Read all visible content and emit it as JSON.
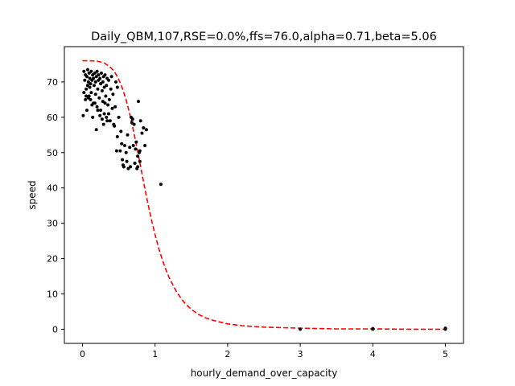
{
  "chart_data": {
    "type": "scatter",
    "title": "Daily_QBM,107,RSE=0.0%,ffs=76.0,alpha=0.71,beta=5.06",
    "xlabel": "hourly_demand_over_capacity",
    "ylabel": "speed",
    "xlim": [
      -0.25,
      5.25
    ],
    "ylim": [
      -4,
      80
    ],
    "xticks": [
      0,
      1,
      2,
      3,
      4,
      5
    ],
    "yticks": [
      0,
      10,
      20,
      30,
      40,
      50,
      60,
      70
    ],
    "grid": false,
    "colors": {
      "points": "#000000",
      "curve": "#ff0000",
      "axes": "#000000"
    },
    "fit_curve": {
      "style": "dashed",
      "ffs": 76.0,
      "alpha": 0.71,
      "beta": 5.06,
      "x": [
        0,
        0.1,
        0.2,
        0.3,
        0.4,
        0.45,
        0.5,
        0.55,
        0.6,
        0.65,
        0.7,
        0.75,
        0.8,
        0.85,
        0.9,
        0.95,
        1.0,
        1.05,
        1.1,
        1.15,
        1.2,
        1.3,
        1.4,
        1.5,
        1.6,
        1.7,
        1.8,
        2.0,
        2.2,
        2.5,
        3.0,
        3.5,
        4.0,
        4.5,
        5.0
      ],
      "y": [
        76.0,
        76.0,
        75.9,
        75.4,
        73.9,
        72.6,
        70.7,
        68.2,
        65.0,
        61.0,
        56.4,
        51.4,
        46.1,
        40.8,
        35.7,
        31.0,
        26.8,
        23.0,
        19.7,
        16.8,
        14.3,
        10.4,
        7.6,
        5.6,
        4.2,
        3.2,
        2.5,
        1.5,
        1.0,
        0.6,
        0.3,
        0.1,
        0.1,
        0.0,
        0.0
      ]
    },
    "points": [
      [
        0.02,
        73.0
      ],
      [
        0.03,
        70.5
      ],
      [
        0.04,
        72.0
      ],
      [
        0.05,
        68.0
      ],
      [
        0.05,
        66.0
      ],
      [
        0.06,
        71.5
      ],
      [
        0.07,
        69.0
      ],
      [
        0.07,
        73.5
      ],
      [
        0.08,
        70.0
      ],
      [
        0.08,
        65.5
      ],
      [
        0.09,
        72.5
      ],
      [
        0.1,
        71.0
      ],
      [
        0.1,
        68.5
      ],
      [
        0.11,
        69.5
      ],
      [
        0.12,
        73.0
      ],
      [
        0.12,
        67.0
      ],
      [
        0.13,
        70.5
      ],
      [
        0.14,
        72.0
      ],
      [
        0.15,
        64.0
      ],
      [
        0.15,
        71.0
      ],
      [
        0.16,
        69.0
      ],
      [
        0.17,
        72.5
      ],
      [
        0.18,
        70.0
      ],
      [
        0.18,
        66.5
      ],
      [
        0.19,
        71.5
      ],
      [
        0.2,
        73.0
      ],
      [
        0.2,
        63.0
      ],
      [
        0.21,
        68.0
      ],
      [
        0.22,
        70.5
      ],
      [
        0.22,
        72.0
      ],
      [
        0.23,
        65.5
      ],
      [
        0.24,
        71.0
      ],
      [
        0.25,
        69.5
      ],
      [
        0.25,
        62.0
      ],
      [
        0.26,
        72.5
      ],
      [
        0.27,
        67.5
      ],
      [
        0.28,
        70.0
      ],
      [
        0.28,
        64.5
      ],
      [
        0.29,
        71.5
      ],
      [
        0.3,
        61.0
      ],
      [
        0.3,
        68.5
      ],
      [
        0.31,
        72.0
      ],
      [
        0.32,
        66.0
      ],
      [
        0.33,
        69.0
      ],
      [
        0.33,
        60.0
      ],
      [
        0.34,
        71.0
      ],
      [
        0.35,
        63.5
      ],
      [
        0.36,
        70.5
      ],
      [
        0.37,
        65.0
      ],
      [
        0.38,
        59.0
      ],
      [
        0.39,
        68.0
      ],
      [
        0.4,
        71.5
      ],
      [
        0.41,
        62.5
      ],
      [
        0.42,
        66.5
      ],
      [
        0.44,
        57.5
      ],
      [
        0.45,
        63.0
      ],
      [
        0.46,
        70.0
      ],
      [
        0.48,
        54.5
      ],
      [
        0.48,
        68.5
      ],
      [
        0.5,
        60.0
      ],
      [
        0.52,
        50.5
      ],
      [
        0.53,
        56.0
      ],
      [
        0.55,
        48.0
      ],
      [
        0.57,
        46.0
      ],
      [
        0.58,
        52.0
      ],
      [
        0.6,
        50.0
      ],
      [
        0.61,
        47.5
      ],
      [
        0.63,
        45.5
      ],
      [
        0.65,
        51.5
      ],
      [
        0.66,
        46.0
      ],
      [
        0.68,
        58.5
      ],
      [
        0.69,
        59.5
      ],
      [
        0.7,
        52.0
      ],
      [
        0.71,
        58.0
      ],
      [
        0.72,
        47.0
      ],
      [
        0.73,
        51.0
      ],
      [
        0.74,
        53.0
      ],
      [
        0.75,
        45.5
      ],
      [
        0.76,
        49.0
      ],
      [
        0.77,
        64.5
      ],
      [
        0.78,
        50.0
      ],
      [
        0.79,
        47.5
      ],
      [
        0.8,
        59.0
      ],
      [
        0.82,
        55.5
      ],
      [
        0.84,
        57.0
      ],
      [
        0.86,
        52.0
      ],
      [
        0.88,
        56.5
      ],
      [
        1.08,
        41.0
      ],
      [
        0.01,
        60.5
      ],
      [
        0.02,
        67.0
      ],
      [
        0.04,
        65.0
      ],
      [
        0.06,
        62.0
      ],
      [
        0.09,
        66.0
      ],
      [
        0.11,
        65.0
      ],
      [
        0.13,
        63.5
      ],
      [
        0.14,
        60.0
      ],
      [
        0.17,
        64.0
      ],
      [
        0.19,
        56.5
      ],
      [
        0.21,
        62.0
      ],
      [
        0.24,
        60.5
      ],
      [
        0.27,
        59.5
      ],
      [
        0.29,
        58.0
      ],
      [
        0.31,
        64.0
      ],
      [
        0.34,
        59.0
      ],
      [
        0.36,
        61.0
      ],
      [
        0.43,
        58.0
      ],
      [
        0.47,
        50.5
      ],
      [
        0.54,
        52.5
      ],
      [
        0.62,
        55.0
      ],
      [
        0.67,
        60.0
      ],
      [
        0.56,
        46.5
      ],
      [
        0.76,
        46.0
      ],
      [
        0.79,
        50.5
      ],
      [
        3.0,
        0.0
      ],
      [
        4.0,
        0.0
      ],
      [
        5.0,
        0.0
      ],
      [
        5.0,
        0.3
      ],
      [
        4.0,
        0.2
      ]
    ]
  }
}
